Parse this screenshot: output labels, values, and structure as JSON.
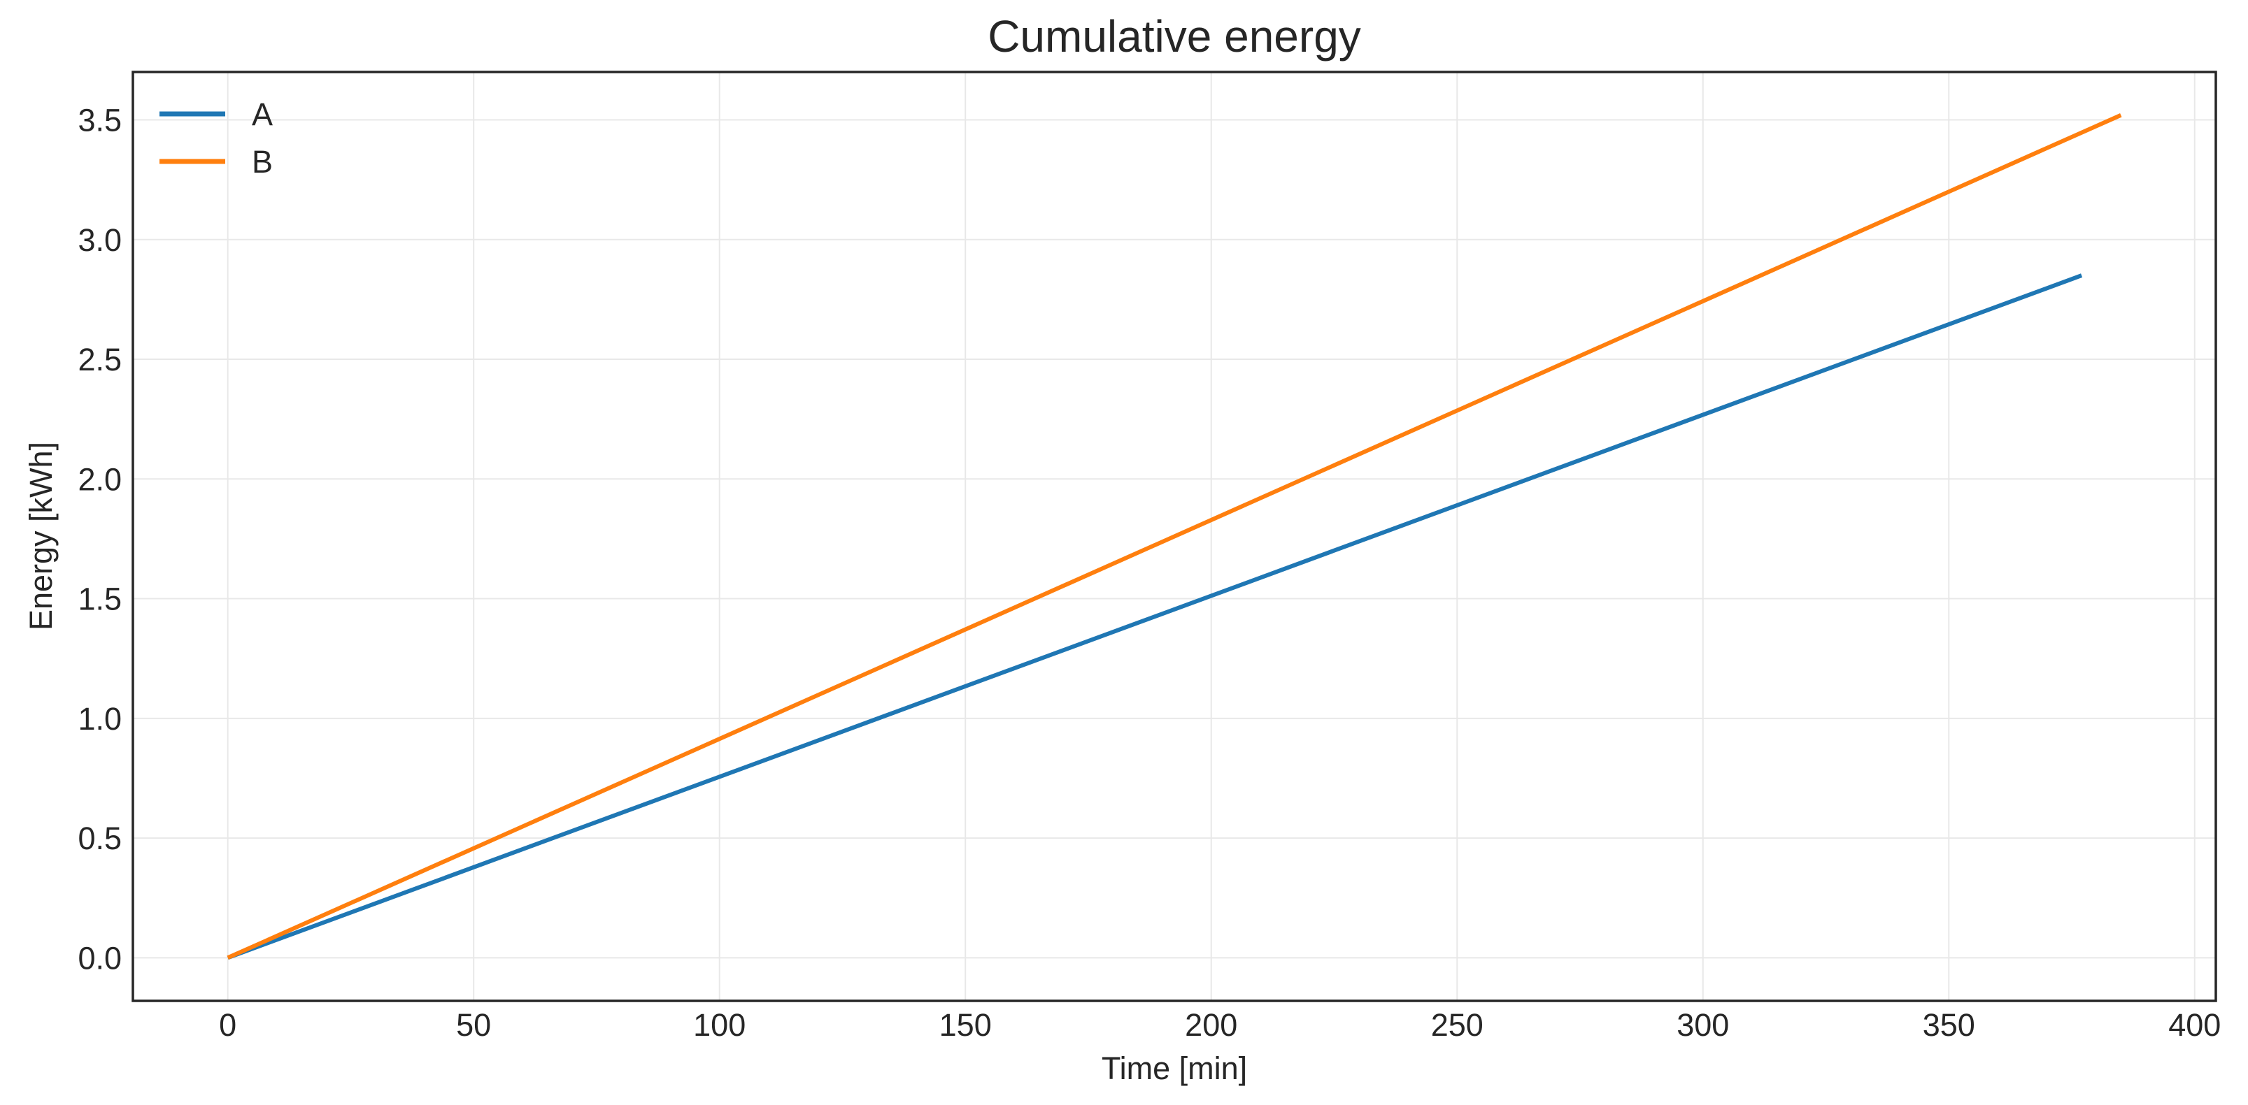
{
  "chart_data": {
    "type": "line",
    "title": "Cumulative energy",
    "xlabel": "Time [min]",
    "ylabel": "Energy [kWh]",
    "xlim": [
      -19.3,
      404.3
    ],
    "ylim": [
      -0.18,
      3.7
    ],
    "x_ticks": [
      0,
      50,
      100,
      150,
      200,
      250,
      300,
      350,
      400
    ],
    "x_tick_labels": [
      "0",
      "50",
      "100",
      "150",
      "200",
      "250",
      "300",
      "350",
      "400"
    ],
    "y_ticks": [
      0.0,
      0.5,
      1.0,
      1.5,
      2.0,
      2.5,
      3.0,
      3.5
    ],
    "y_tick_labels": [
      "0.0",
      "0.5",
      "1.0",
      "1.5",
      "2.0",
      "2.5",
      "3.0",
      "3.5"
    ],
    "grid": true,
    "legend_position": "upper left",
    "colors": {
      "background": "#ffffff",
      "spine": "#262626",
      "grid": "#e8e8e8",
      "text": "#262626"
    },
    "series": [
      {
        "name": "A",
        "color": "#1f77b4",
        "x": [
          0,
          377
        ],
        "y": [
          0.0,
          2.85
        ]
      },
      {
        "name": "B",
        "color": "#ff7f0e",
        "x": [
          0,
          385
        ],
        "y": [
          0.0,
          3.52
        ]
      }
    ]
  }
}
